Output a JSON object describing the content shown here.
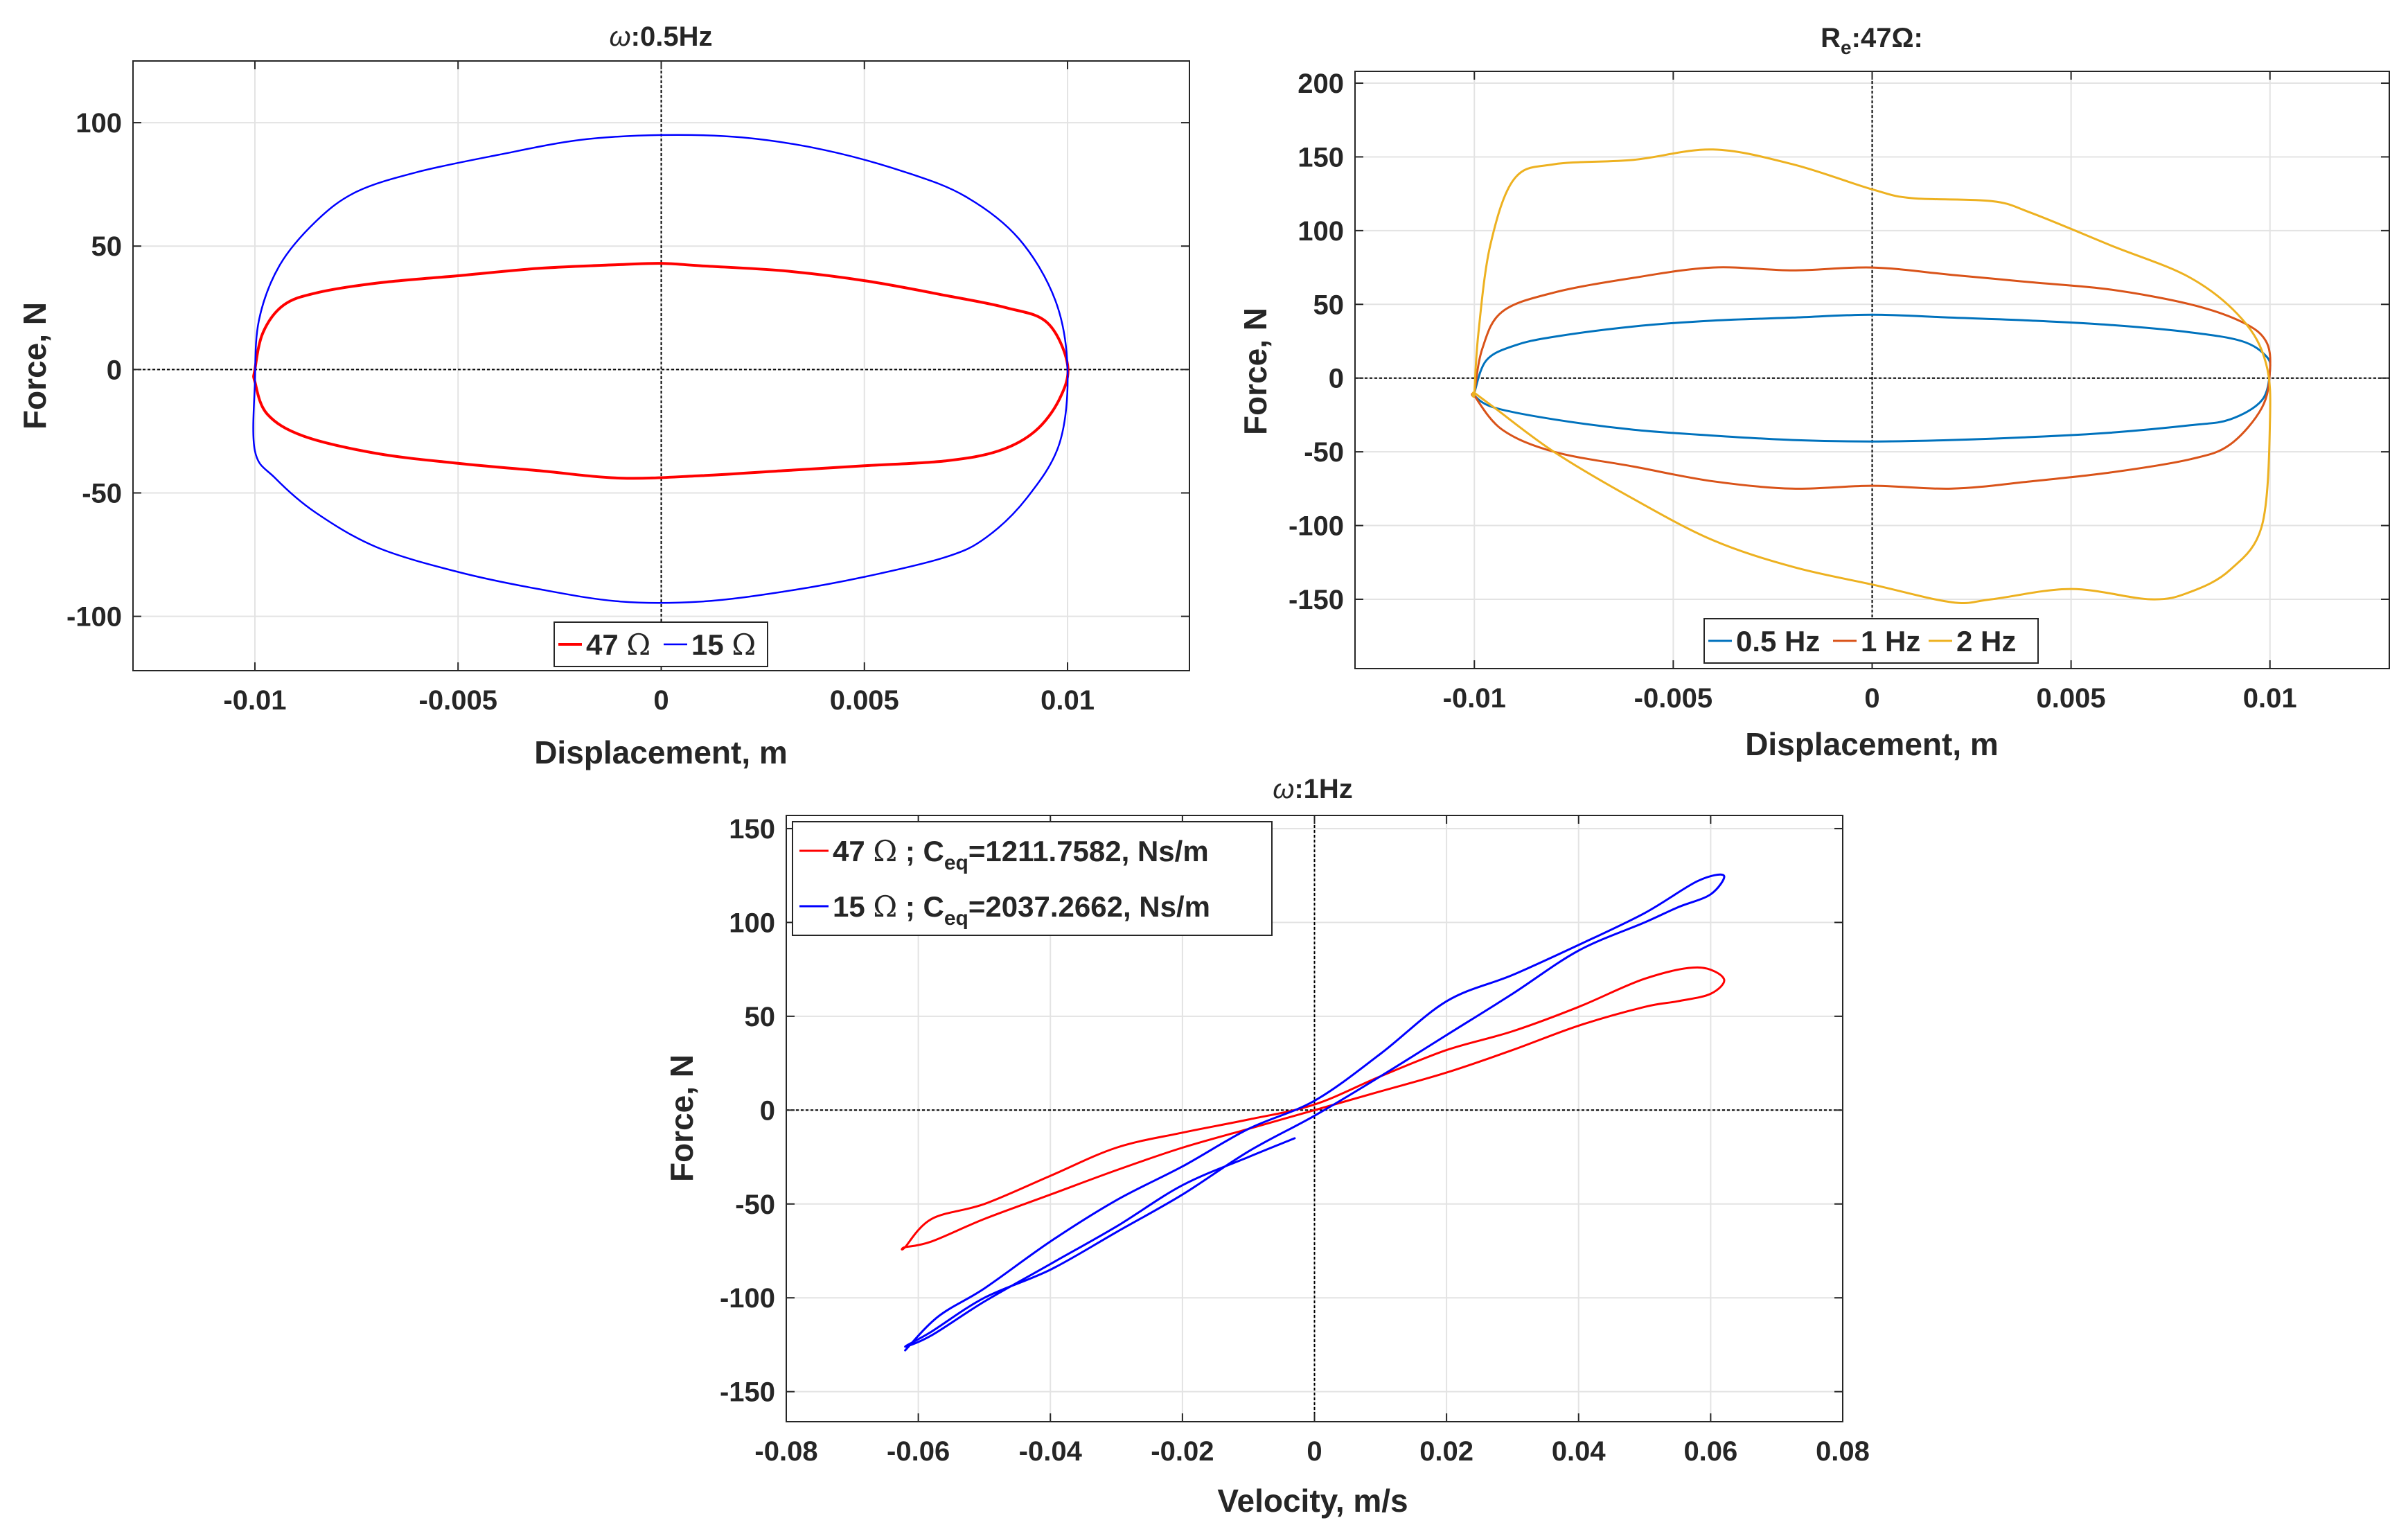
{
  "chart_data": [
    {
      "id": "chart1",
      "type": "line",
      "title": "ω:0.5Hz",
      "title_prefix": "ω",
      "title_suffix": ":0.5Hz",
      "xlabel": "Displacement, m",
      "ylabel": "Force, N",
      "xlim": [
        -0.013,
        0.013
      ],
      "ylim": [
        -122,
        125
      ],
      "xticks": [
        -0.01,
        -0.005,
        0,
        0.005,
        0.01
      ],
      "xtick_labels": [
        "-0.01",
        "-0.005",
        "0",
        "0.005",
        "0.01"
      ],
      "yticks": [
        -100,
        -50,
        0,
        50,
        100
      ],
      "ytick_labels": [
        "-100",
        "-50",
        "0",
        "50",
        "100"
      ],
      "grid": true,
      "legend_position": "bottom-center",
      "legend_orientation": "horizontal",
      "series": [
        {
          "name": "47 Ω",
          "name_num": "47 ",
          "name_sym": "Ω",
          "color": "#ff0000",
          "loop": true,
          "stroke": 4,
          "points": [
            [
              -0.01,
              0
            ],
            [
              -0.0098,
              15
            ],
            [
              -0.0093,
              26
            ],
            [
              -0.0085,
              31
            ],
            [
              -0.007,
              35
            ],
            [
              -0.005,
              38
            ],
            [
              -0.003,
              41
            ],
            [
              -0.001,
              42.5
            ],
            [
              0,
              43
            ],
            [
              0.001,
              42
            ],
            [
              0.003,
              40
            ],
            [
              0.005,
              36
            ],
            [
              0.007,
              30
            ],
            [
              0.0085,
              25
            ],
            [
              0.0095,
              19
            ],
            [
              0.01,
              2
            ],
            [
              0.0098,
              -12
            ],
            [
              0.0092,
              -25
            ],
            [
              0.0083,
              -33
            ],
            [
              0.007,
              -37
            ],
            [
              0.005,
              -39
            ],
            [
              0.003,
              -41
            ],
            [
              0.001,
              -43
            ],
            [
              -0.001,
              -44
            ],
            [
              -0.003,
              -41
            ],
            [
              -0.005,
              -38
            ],
            [
              -0.007,
              -34
            ],
            [
              -0.0088,
              -27
            ],
            [
              -0.0097,
              -18
            ],
            [
              -0.01,
              -5
            ]
          ]
        },
        {
          "name": "15 Ω",
          "name_num": "15 ",
          "name_sym": "Ω",
          "color": "#0000ff",
          "loop": true,
          "stroke": 2.5,
          "points": [
            [
              -0.01,
              -5
            ],
            [
              -0.0099,
              20
            ],
            [
              -0.0094,
              42
            ],
            [
              -0.0085,
              60
            ],
            [
              -0.0075,
              72
            ],
            [
              -0.006,
              80
            ],
            [
              -0.004,
              87
            ],
            [
              -0.002,
              93
            ],
            [
              0,
              95
            ],
            [
              0.002,
              94
            ],
            [
              0.004,
              89
            ],
            [
              0.006,
              80
            ],
            [
              0.0075,
              70
            ],
            [
              0.0088,
              53
            ],
            [
              0.0097,
              28
            ],
            [
              0.01,
              0
            ],
            [
              0.0098,
              -30
            ],
            [
              0.009,
              -52
            ],
            [
              0.008,
              -68
            ],
            [
              0.007,
              -76
            ],
            [
              0.005,
              -84
            ],
            [
              0.003,
              -90
            ],
            [
              0.001,
              -94
            ],
            [
              -0.001,
              -94
            ],
            [
              -0.003,
              -89
            ],
            [
              -0.005,
              -82
            ],
            [
              -0.007,
              -72
            ],
            [
              -0.0085,
              -58
            ],
            [
              -0.0095,
              -44
            ],
            [
              -0.01,
              -33
            ]
          ]
        }
      ]
    },
    {
      "id": "chart2",
      "type": "line",
      "title": "Re:47Ω:",
      "title_main": "R",
      "title_sub": "e",
      "title_rest": ":47Ω:",
      "xlabel": "Displacement, m",
      "ylabel": "Force, N",
      "xlim": [
        -0.013,
        0.013
      ],
      "ylim": [
        -197,
        208
      ],
      "xticks": [
        -0.01,
        -0.005,
        0,
        0.005,
        0.01
      ],
      "xtick_labels": [
        "-0.01",
        "-0.005",
        "0",
        "0.005",
        "0.01"
      ],
      "yticks": [
        -150,
        -100,
        -50,
        0,
        50,
        100,
        150,
        200
      ],
      "ytick_labels": [
        "-150",
        "-100",
        "-50",
        "0",
        "50",
        "100",
        "150",
        "200"
      ],
      "grid": true,
      "legend_position": "bottom-center",
      "legend_orientation": "horizontal",
      "series": [
        {
          "name": "0.5 Hz",
          "color": "#0072bd",
          "loop": true,
          "stroke": 3,
          "points": [
            [
              -0.01,
              -10
            ],
            [
              -0.0097,
              12
            ],
            [
              -0.009,
              22
            ],
            [
              -0.008,
              28
            ],
            [
              -0.006,
              35
            ],
            [
              -0.004,
              39
            ],
            [
              -0.002,
              41
            ],
            [
              0,
              43
            ],
            [
              0.002,
              41
            ],
            [
              0.004,
              39
            ],
            [
              0.006,
              36
            ],
            [
              0.008,
              31
            ],
            [
              0.0093,
              25
            ],
            [
              0.0099,
              15
            ],
            [
              0.01,
              5
            ],
            [
              0.0098,
              -15
            ],
            [
              0.009,
              -28
            ],
            [
              0.008,
              -32
            ],
            [
              0.006,
              -37
            ],
            [
              0.004,
              -40
            ],
            [
              0.002,
              -42
            ],
            [
              0,
              -43
            ],
            [
              -0.002,
              -42
            ],
            [
              -0.004,
              -39
            ],
            [
              -0.006,
              -35
            ],
            [
              -0.008,
              -28
            ],
            [
              -0.0095,
              -20
            ],
            [
              -0.01,
              -12
            ]
          ]
        },
        {
          "name": "1 Hz",
          "color": "#d95319",
          "loop": true,
          "stroke": 3,
          "points": [
            [
              -0.01,
              -10
            ],
            [
              -0.0098,
              20
            ],
            [
              -0.0093,
              45
            ],
            [
              -0.008,
              58
            ],
            [
              -0.006,
              68
            ],
            [
              -0.004,
              75
            ],
            [
              -0.002,
              73
            ],
            [
              0,
              75
            ],
            [
              0.002,
              70
            ],
            [
              0.004,
              65
            ],
            [
              0.006,
              60
            ],
            [
              0.008,
              50
            ],
            [
              0.0093,
              38
            ],
            [
              0.0099,
              25
            ],
            [
              0.01,
              5
            ],
            [
              0.0098,
              -20
            ],
            [
              0.009,
              -45
            ],
            [
              0.008,
              -55
            ],
            [
              0.006,
              -64
            ],
            [
              0.004,
              -70
            ],
            [
              0.002,
              -75
            ],
            [
              0,
              -73
            ],
            [
              -0.002,
              -75
            ],
            [
              -0.004,
              -70
            ],
            [
              -0.006,
              -60
            ],
            [
              -0.008,
              -50
            ],
            [
              -0.0093,
              -35
            ],
            [
              -0.01,
              -12
            ]
          ]
        },
        {
          "name": "2 Hz",
          "color": "#edb120",
          "loop": true,
          "stroke": 3,
          "points": [
            [
              -0.01,
              -10
            ],
            [
              -0.0099,
              30
            ],
            [
              -0.0096,
              90
            ],
            [
              -0.009,
              135
            ],
            [
              -0.008,
              145
            ],
            [
              -0.006,
              148
            ],
            [
              -0.004,
              155
            ],
            [
              -0.002,
              145
            ],
            [
              0,
              128
            ],
            [
              0.001,
              122
            ],
            [
              0.003,
              120
            ],
            [
              0.004,
              112
            ],
            [
              0.006,
              90
            ],
            [
              0.008,
              68
            ],
            [
              0.0093,
              40
            ],
            [
              0.0099,
              10
            ],
            [
              0.01,
              -30
            ],
            [
              0.0098,
              -100
            ],
            [
              0.009,
              -130
            ],
            [
              0.008,
              -145
            ],
            [
              0.007,
              -150
            ],
            [
              0.005,
              -143
            ],
            [
              0.003,
              -150
            ],
            [
              0.002,
              -152
            ],
            [
              0,
              -140
            ],
            [
              -0.002,
              -128
            ],
            [
              -0.004,
              -110
            ],
            [
              -0.006,
              -82
            ],
            [
              -0.008,
              -50
            ],
            [
              -0.0095,
              -20
            ],
            [
              -0.01,
              -10
            ]
          ]
        }
      ]
    },
    {
      "id": "chart3",
      "type": "line",
      "title": "ω:1Hz",
      "title_prefix": "ω",
      "title_suffix": ":1Hz",
      "xlabel": "Velocity, m/s",
      "ylabel": "Force, N",
      "xlim": [
        -0.08,
        0.08
      ],
      "ylim": [
        -166,
        157
      ],
      "xticks": [
        -0.08,
        -0.06,
        -0.04,
        -0.02,
        0,
        0.02,
        0.04,
        0.06,
        0.08
      ],
      "xtick_labels": [
        "-0.08",
        "-0.06",
        "-0.04",
        "-0.02",
        "0",
        "0.02",
        "0.04",
        "0.06",
        "0.08"
      ],
      "yticks": [
        -150,
        -100,
        -50,
        0,
        50,
        100,
        150
      ],
      "ytick_labels": [
        "-150",
        "-100",
        "-50",
        "0",
        "50",
        "100",
        "150"
      ],
      "grid": true,
      "legend_position": "top-left",
      "legend_orientation": "vertical",
      "series": [
        {
          "name": "47 Ω ; Ceq=1211.7582, Ns/m",
          "label_a": "47 ",
          "label_sym": "Ω",
          "label_b": " ; C",
          "label_sub": "eq",
          "label_c": "=1211.7582, Ns/m",
          "color": "#ff0000",
          "loop": true,
          "stroke": 3,
          "points": [
            [
              -0.062,
              -73
            ],
            [
              -0.058,
              -58
            ],
            [
              -0.05,
              -50
            ],
            [
              -0.04,
              -35
            ],
            [
              -0.03,
              -20
            ],
            [
              -0.02,
              -12
            ],
            [
              -0.01,
              -5
            ],
            [
              0,
              3
            ],
            [
              0.01,
              18
            ],
            [
              0.02,
              32
            ],
            [
              0.03,
              42
            ],
            [
              0.04,
              55
            ],
            [
              0.05,
              70
            ],
            [
              0.058,
              76
            ],
            [
              0.062,
              70
            ],
            [
              0.06,
              62
            ],
            [
              0.055,
              58
            ],
            [
              0.05,
              55
            ],
            [
              0.04,
              45
            ],
            [
              0.03,
              32
            ],
            [
              0.02,
              20
            ],
            [
              0.01,
              10
            ],
            [
              0,
              0
            ],
            [
              -0.01,
              -10
            ],
            [
              -0.02,
              -20
            ],
            [
              -0.03,
              -32
            ],
            [
              -0.04,
              -45
            ],
            [
              -0.05,
              -58
            ],
            [
              -0.058,
              -70
            ],
            [
              -0.062,
              -73
            ]
          ]
        },
        {
          "name": "15 Ω ; Ceq=2037.2662, Ns/m",
          "label_a": "15 ",
          "label_sym": "Ω",
          "label_b": " ; C",
          "label_sub": "eq",
          "label_c": "=2037.2662, Ns/m",
          "color": "#0000ff",
          "loop": false,
          "stroke": 3,
          "points": [
            [
              -0.062,
              -128
            ],
            [
              -0.057,
              -110
            ],
            [
              -0.05,
              -95
            ],
            [
              -0.04,
              -70
            ],
            [
              -0.03,
              -48
            ],
            [
              -0.02,
              -30
            ],
            [
              -0.01,
              -10
            ],
            [
              0,
              5
            ],
            [
              0.01,
              30
            ],
            [
              0.02,
              58
            ],
            [
              0.03,
              72
            ],
            [
              0.04,
              88
            ],
            [
              0.05,
              105
            ],
            [
              0.058,
              122
            ],
            [
              0.062,
              125
            ],
            [
              0.06,
              115
            ],
            [
              0.055,
              108
            ],
            [
              0.05,
              100
            ],
            [
              0.04,
              85
            ],
            [
              0.03,
              62
            ],
            [
              0.02,
              40
            ],
            [
              0.01,
              18
            ],
            [
              0,
              -3
            ],
            [
              -0.01,
              -22
            ],
            [
              -0.02,
              -45
            ],
            [
              -0.03,
              -65
            ],
            [
              -0.04,
              -85
            ],
            [
              -0.05,
              -100
            ],
            [
              -0.058,
              -118
            ],
            [
              -0.062,
              -126
            ],
            [
              -0.058,
              -120
            ],
            [
              -0.05,
              -102
            ],
            [
              -0.04,
              -82
            ],
            [
              -0.03,
              -62
            ],
            [
              -0.02,
              -40
            ],
            [
              -0.01,
              -25
            ],
            [
              -0.003,
              -15
            ]
          ]
        }
      ]
    }
  ]
}
